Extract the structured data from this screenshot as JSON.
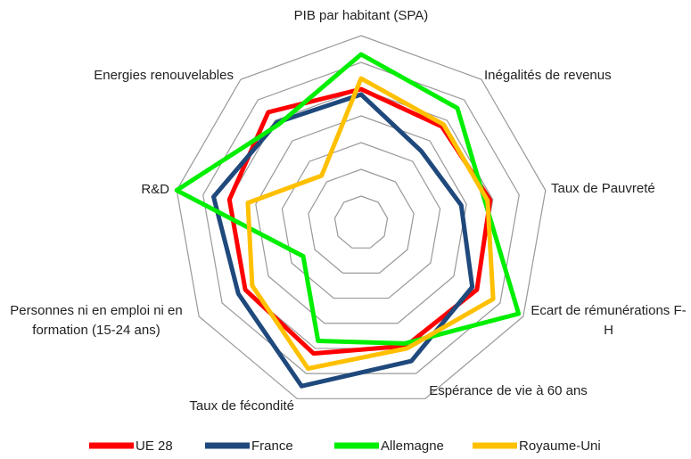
{
  "chart_data": {
    "type": "radar",
    "categories": [
      "PIB par habitant (SPA)",
      "Inégalités de revenus",
      "Taux de Pauvreté",
      "Ecart de rémunérations F-H",
      "Espérance de vie à 60 ans",
      "Taux de fécondité",
      "Personnes ni en emploi ni en formation (15-24 ans)",
      "R&D",
      "Energies renouvelables"
    ],
    "series": [
      {
        "name": "UE 28",
        "color": "#ff0000",
        "values": [
          5.0,
          4.7,
          4.9,
          5.0,
          4.9,
          5.2,
          5.0,
          5.0,
          5.4
        ]
      },
      {
        "name": "France",
        "color": "#1f497d",
        "values": [
          4.8,
          3.5,
          3.8,
          4.8,
          5.5,
          6.5,
          5.3,
          5.6,
          4.9
        ]
      },
      {
        "name": "Allemagne",
        "color": "#00ee00",
        "values": [
          6.3,
          5.6,
          4.7,
          6.8,
          4.8,
          4.7,
          2.5,
          7.0,
          4.8
        ]
      },
      {
        "name": "Royaume-Uni",
        "color": "#ffc000",
        "values": [
          5.4,
          4.8,
          4.8,
          5.7,
          5.0,
          5.8,
          4.7,
          4.3,
          2.3
        ]
      }
    ],
    "ylim": [
      0,
      7
    ],
    "yticks": [
      1,
      2,
      3,
      4,
      5,
      6,
      7
    ],
    "grid": true,
    "legend": "bottom"
  }
}
